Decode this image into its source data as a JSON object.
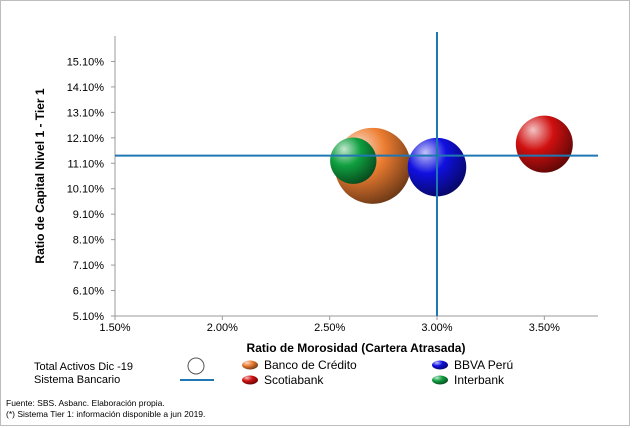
{
  "chart_data": {
    "type": "bubble",
    "xlabel": "Ratio de Morosidad (Cartera Atrasada)",
    "ylabel": "Ratio de Capital Nivel 1 - Tier 1",
    "xlim": [
      0.015,
      0.0375
    ],
    "ylim": [
      0.051,
      0.161
    ],
    "x_ticks": [
      "1.50%",
      "2.00%",
      "2.50%",
      "3.00%",
      "3.50%"
    ],
    "y_ticks": [
      "5.10%",
      "6.10%",
      "7.10%",
      "8.10%",
      "9.10%",
      "10.10%",
      "11.10%",
      "12.10%",
      "13.10%",
      "14.10%",
      "15.10%"
    ],
    "grid": false,
    "series": [
      {
        "name": "Banco de Crédito",
        "color": "#ed7d31",
        "x": 0.027,
        "y": 0.11,
        "size": 1.0
      },
      {
        "name": "BBVA Perú",
        "color": "#1010e0",
        "x": 0.03,
        "y": 0.1095,
        "size": 0.77
      },
      {
        "name": "Scotiabank",
        "color": "#d01010",
        "x": 0.035,
        "y": 0.1185,
        "size": 0.75
      },
      {
        "name": "Interbank",
        "color": "#10a040",
        "x": 0.0261,
        "y": 0.112,
        "size": 0.61
      }
    ],
    "reference_lines": {
      "x": 0.03,
      "y": 0.114,
      "color": "#1f77b4"
    },
    "legend": {
      "total_assets_label": "Total Activos  Dic -19",
      "system_label": "Sistema Bancario"
    }
  },
  "footer": {
    "source": "Fuente: SBS. Asbanc. Elaboración propia.",
    "note": "(*) Sistema Tier 1: información disponible a jun 2019."
  }
}
